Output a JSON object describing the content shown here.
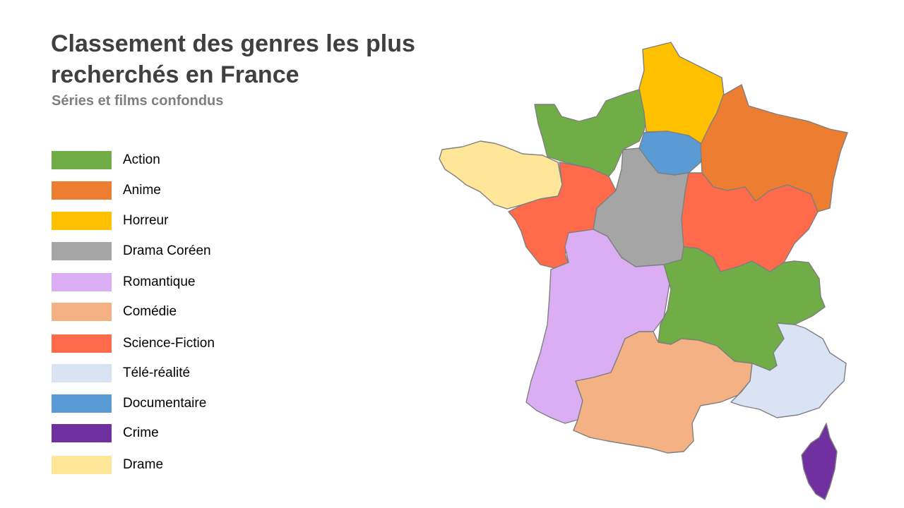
{
  "title": "Classement des genres les plus recherchés en France",
  "subtitle": "Séries et films confondus",
  "legend": [
    {
      "label": "Action",
      "color": "#70ad47"
    },
    {
      "label": "Anime",
      "color": "#ed7d31"
    },
    {
      "label": "Horreur",
      "color": "#ffc000"
    },
    {
      "label": "Drama Coréen",
      "color": "#a5a5a5"
    },
    {
      "label": "Romantique",
      "color": "#dbaef4"
    },
    {
      "label": "Comédie",
      "color": "#f4b183"
    },
    {
      "label": "Science-Fiction",
      "color": "#ff6a4a"
    },
    {
      "label": "Télé-réalité",
      "color": "#dae3f3"
    },
    {
      "label": "Documentaire",
      "color": "#5b9bd5"
    },
    {
      "label": "Crime",
      "color": "#7030a0"
    },
    {
      "label": "Drame",
      "color": "#ffe699"
    }
  ],
  "regions": [
    {
      "genre": "Drame"
    },
    {
      "genre": "Action"
    },
    {
      "genre": "Horreur"
    },
    {
      "genre": "Documentaire"
    },
    {
      "genre": "Anime"
    },
    {
      "genre": "Drama Coréen"
    },
    {
      "genre": "Science-Fiction"
    },
    {
      "genre": "Science-Fiction"
    },
    {
      "genre": "Romantique"
    },
    {
      "genre": "Action"
    },
    {
      "genre": "Comédie"
    },
    {
      "genre": "Télé-réalité"
    },
    {
      "genre": "Crime"
    }
  ]
}
